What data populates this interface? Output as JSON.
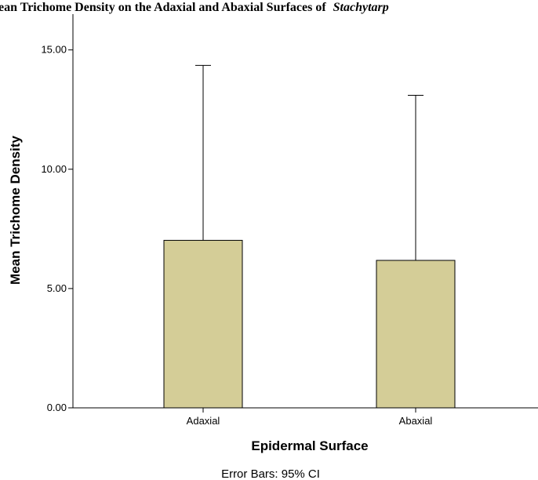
{
  "chart_data": {
    "type": "bar",
    "title_prefix": "ean Trichome Density on the Adaxial and Abaxial Surfaces of",
    "title_italic": "Stachytarp",
    "xlabel": "Epidermal Surface",
    "ylabel": "Mean Trichome Density",
    "categories": [
      "Adaxial",
      "Abaxial"
    ],
    "values": [
      7.02,
      6.18
    ],
    "error_upper": [
      14.35,
      13.1
    ],
    "ylim": [
      0,
      16.5
    ],
    "yticks": [
      0,
      5,
      10,
      15
    ],
    "ytick_labels": [
      "0.00",
      "5.00",
      "10.00",
      "15.00"
    ],
    "footnote": "Error Bars: 95% CI",
    "grid": false,
    "bar_color": "#d4cd97"
  }
}
